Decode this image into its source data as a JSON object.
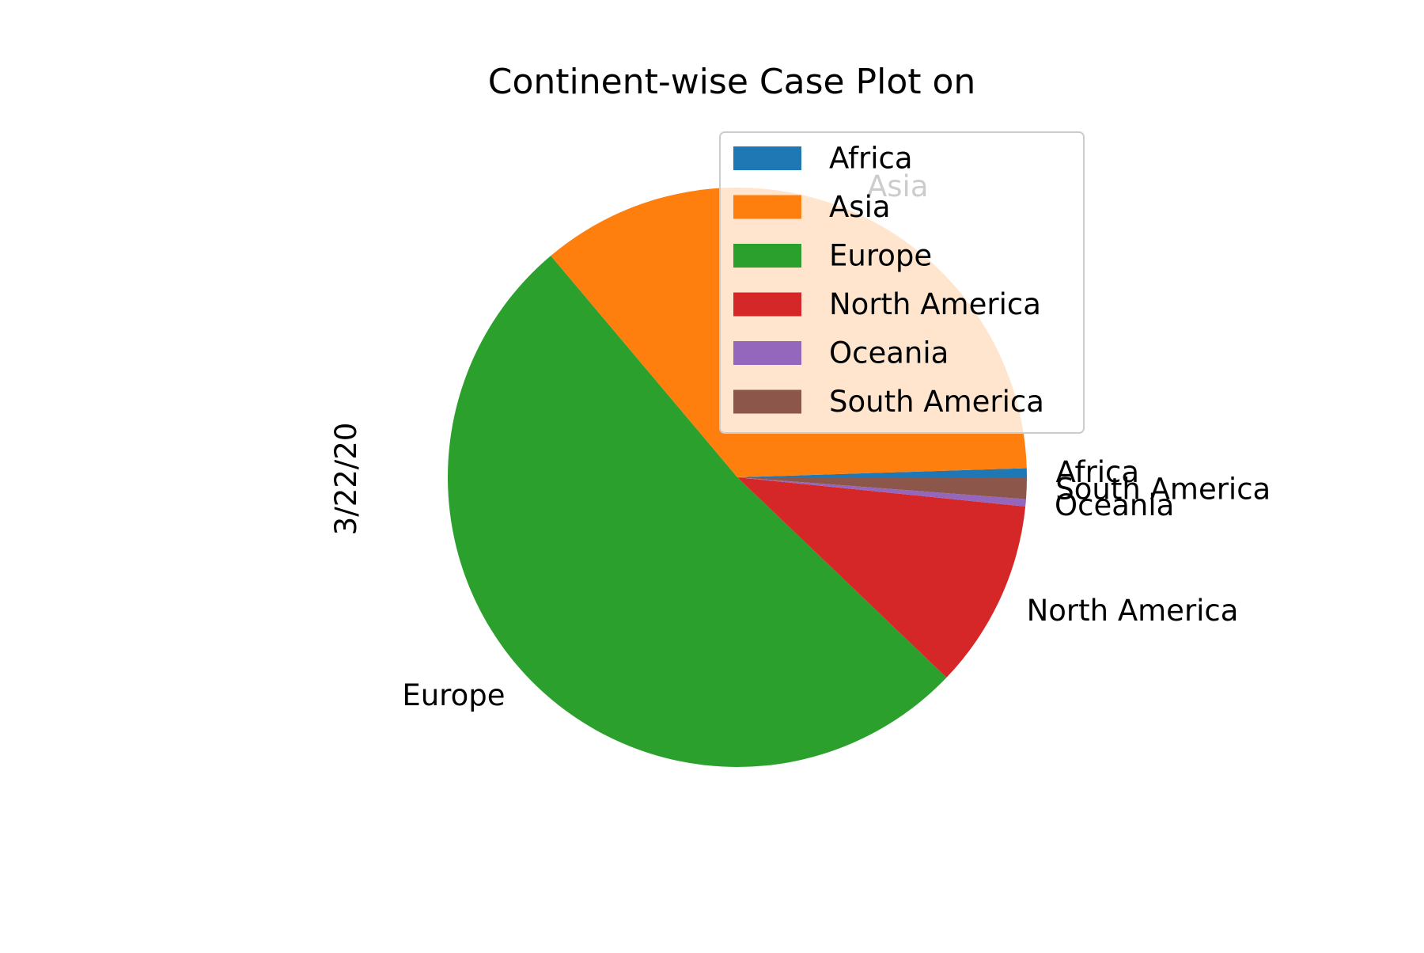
{
  "chart_data": {
    "type": "pie",
    "title": "Continent-wise Case Plot on",
    "ylabel": "3/22/20",
    "start_angle_deg": 0,
    "direction": "counterclockwise",
    "legend_position": "upper-right",
    "slices": [
      {
        "label": "Africa",
        "value": 0.5,
        "color": "#1f77b4"
      },
      {
        "label": "Asia",
        "value": 35.5,
        "color": "#ff7f0e"
      },
      {
        "label": "Europe",
        "value": 51.5,
        "color": "#2ca02c"
      },
      {
        "label": "North America",
        "value": 10.5,
        "color": "#d62728"
      },
      {
        "label": "Oceania",
        "value": 0.4,
        "color": "#9467bd"
      },
      {
        "label": "South America",
        "value": 1.2,
        "color": "#8c564b"
      }
    ]
  }
}
